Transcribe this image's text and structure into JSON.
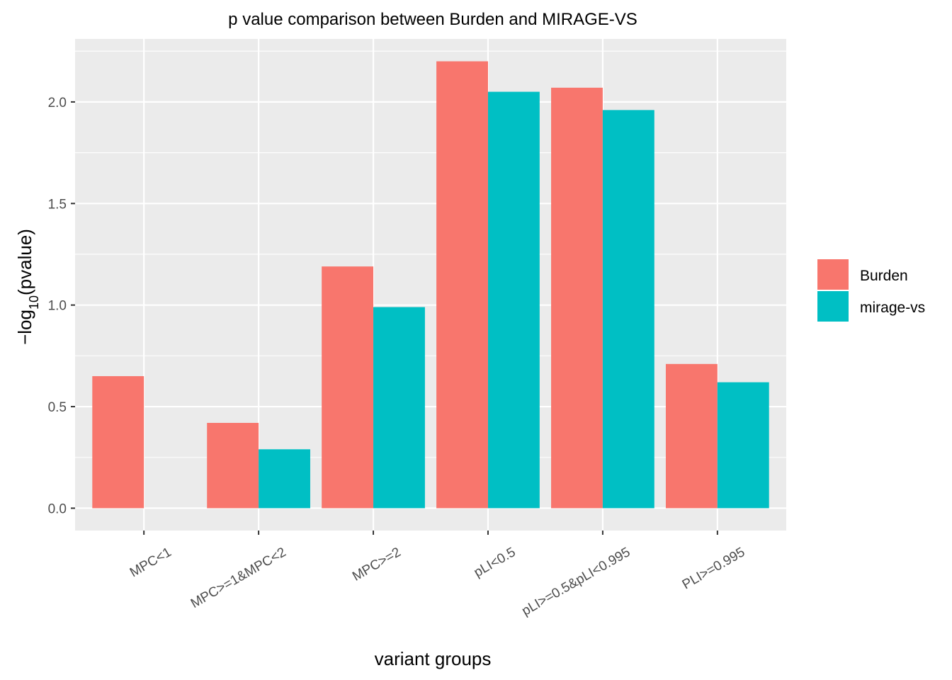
{
  "chart_data": {
    "type": "bar",
    "title": "p value comparison between Burden and MIRAGE-VS",
    "xlabel": "variant groups",
    "ylabel": "-log10(pvalue)",
    "ylabel_parts": {
      "minus": "−",
      "base": "log",
      "subscript": "10",
      "rest": "(pvalue)"
    },
    "categories": [
      "MPC<1",
      "MPC>=1&MPC<2",
      "MPC>=2",
      "pLI<0.5",
      "pLI>=0.5&pLI<0.995",
      "PLI>=0.995"
    ],
    "series": [
      {
        "name": "Burden",
        "color": "#F8766D",
        "values": [
          0.65,
          0.42,
          1.19,
          2.2,
          2.07,
          0.71
        ]
      },
      {
        "name": "mirage-vs",
        "color": "#00BFC4",
        "values": [
          null,
          0.29,
          0.99,
          2.05,
          1.96,
          0.62
        ]
      }
    ],
    "yticks": [
      "0.0",
      "0.5",
      "1.0",
      "1.5",
      "2.0"
    ],
    "ylim": [
      -0.11,
      2.31
    ],
    "grid": true,
    "legend": "right"
  }
}
